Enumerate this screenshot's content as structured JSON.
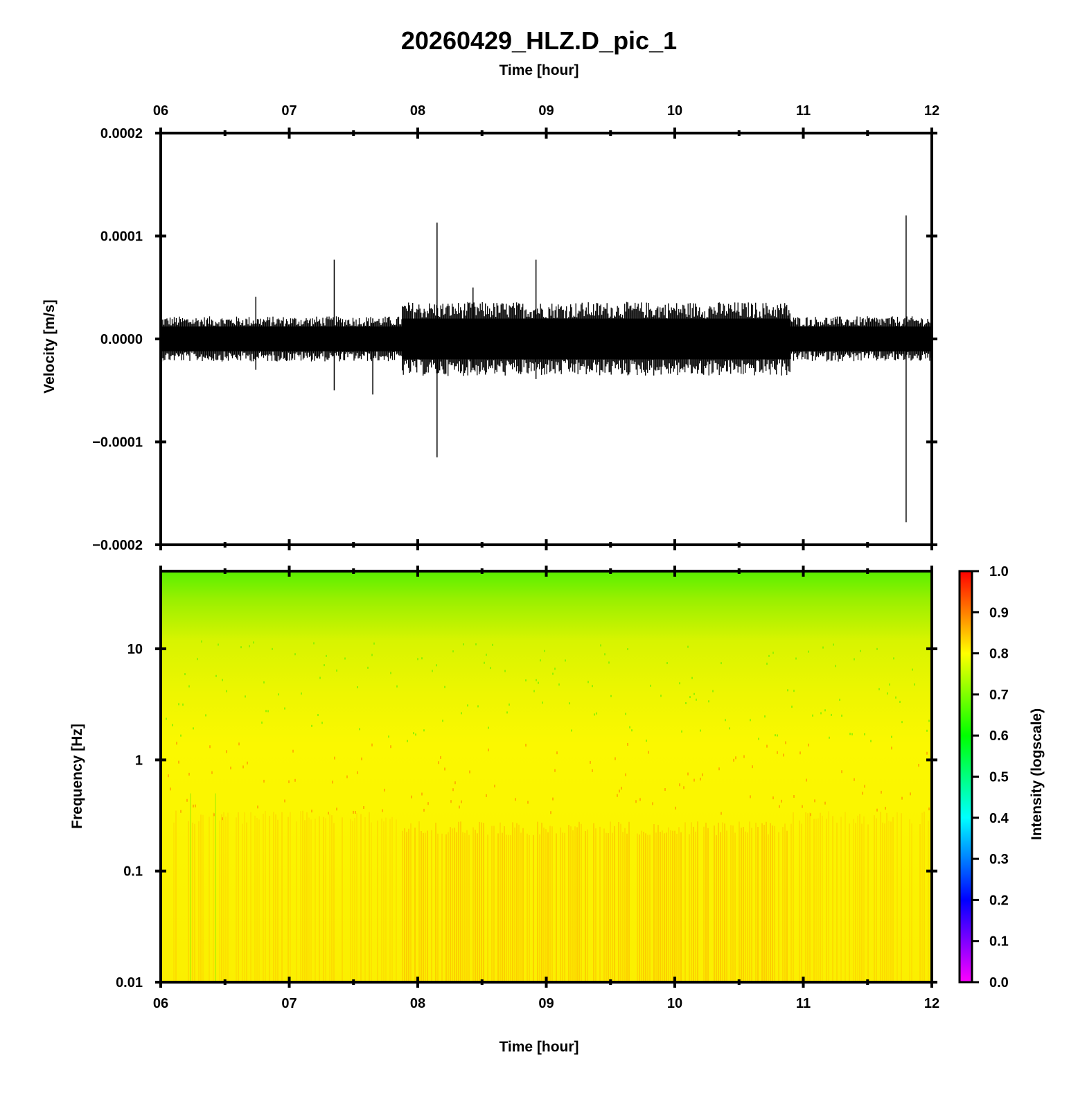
{
  "title": "20260429_HLZ.D_pic_1",
  "top_xlabel": "Time [hour]",
  "bottom_xlabel": "Time [hour]",
  "colors": {
    "waveform": "#000000",
    "spectrogram_low": "#ffff00",
    "spectrogram_high": "#00ff00"
  },
  "chart_data": [
    {
      "type": "line",
      "panel": "waveform",
      "xlabel": "Time [hour]",
      "ylabel": "Velocity [m/s]",
      "xlim": [
        6,
        12
      ],
      "ylim": [
        -0.0002,
        0.0002
      ],
      "x_ticks": [
        "06",
        "07",
        "08",
        "09",
        "10",
        "11",
        "12"
      ],
      "y_ticks": [
        "0.0002",
        "0.0001",
        "0.0000",
        "−0.0001",
        "−0.0002"
      ],
      "noise_envelope": [
        {
          "x_start": 6.0,
          "x_end": 7.88,
          "amplitude": 2.2e-05
        },
        {
          "x_start": 7.88,
          "x_end": 10.9,
          "amplitude": 3.6e-05
        },
        {
          "x_start": 10.9,
          "x_end": 12.0,
          "amplitude": 2.2e-05
        }
      ],
      "spikes": [
        {
          "x": 6.74,
          "max": 4.1e-05,
          "min": -3e-05
        },
        {
          "x": 7.35,
          "max": 7.7e-05,
          "min": -5e-05
        },
        {
          "x": 7.65,
          "max": 2e-05,
          "min": -5.4e-05
        },
        {
          "x": 8.15,
          "max": 0.000113,
          "min": -0.000115
        },
        {
          "x": 8.43,
          "max": 5e-05,
          "min": -2.8e-05
        },
        {
          "x": 8.92,
          "max": 7.7e-05,
          "min": -3.9e-05
        },
        {
          "x": 11.8,
          "max": 0.00012,
          "min": -0.000178
        }
      ]
    },
    {
      "type": "heatmap",
      "panel": "spectrogram",
      "xlabel": "Time [hour]",
      "ylabel": "Frequency [Hz]",
      "xlim": [
        6,
        12
      ],
      "ylim": [
        0.01,
        50
      ],
      "yscale": "log",
      "x_ticks": [
        "06",
        "07",
        "08",
        "09",
        "10",
        "11",
        "12"
      ],
      "y_ticks": [
        "10",
        "1",
        "0.1",
        "0.01"
      ],
      "y_tick_values": [
        10,
        1,
        0.1,
        0.01
      ]
    },
    {
      "type": "colorbar",
      "label": "Intensity (logscale)",
      "range": [
        0.0,
        1.0
      ],
      "ticks": [
        "1.0",
        "0.9",
        "0.8",
        "0.7",
        "0.6",
        "0.5",
        "0.4",
        "0.3",
        "0.2",
        "0.1",
        "0.0"
      ],
      "colormap": [
        "#ff00ff",
        "#0000ff",
        "#00ffff",
        "#00ff00",
        "#ffff00",
        "#ff0000"
      ]
    }
  ]
}
